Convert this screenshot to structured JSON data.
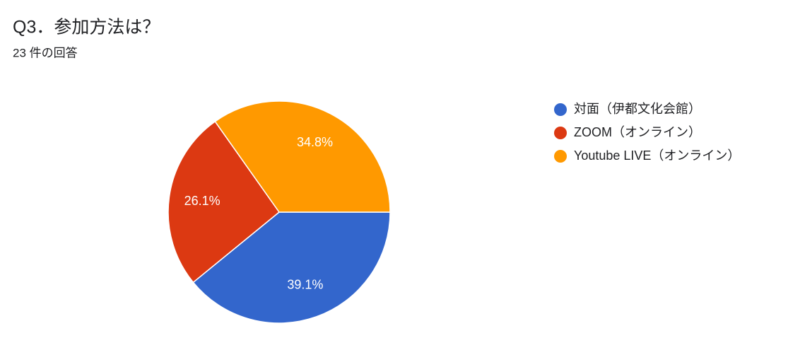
{
  "chart_data": {
    "type": "pie",
    "title": "Q3．参加方法は？",
    "subtitle": "23 件の回答",
    "categories": [
      "対面（伊都文化会館）",
      "ZOOM（オンライン）",
      "Youtube LIVE（オンライン）"
    ],
    "values": [
      39.1,
      26.1,
      34.8
    ],
    "value_labels": [
      "39.1%",
      "26.1%",
      "34.8%"
    ],
    "colors": [
      "#3366cc",
      "#dc3912",
      "#ff9900"
    ],
    "legend": "right"
  }
}
